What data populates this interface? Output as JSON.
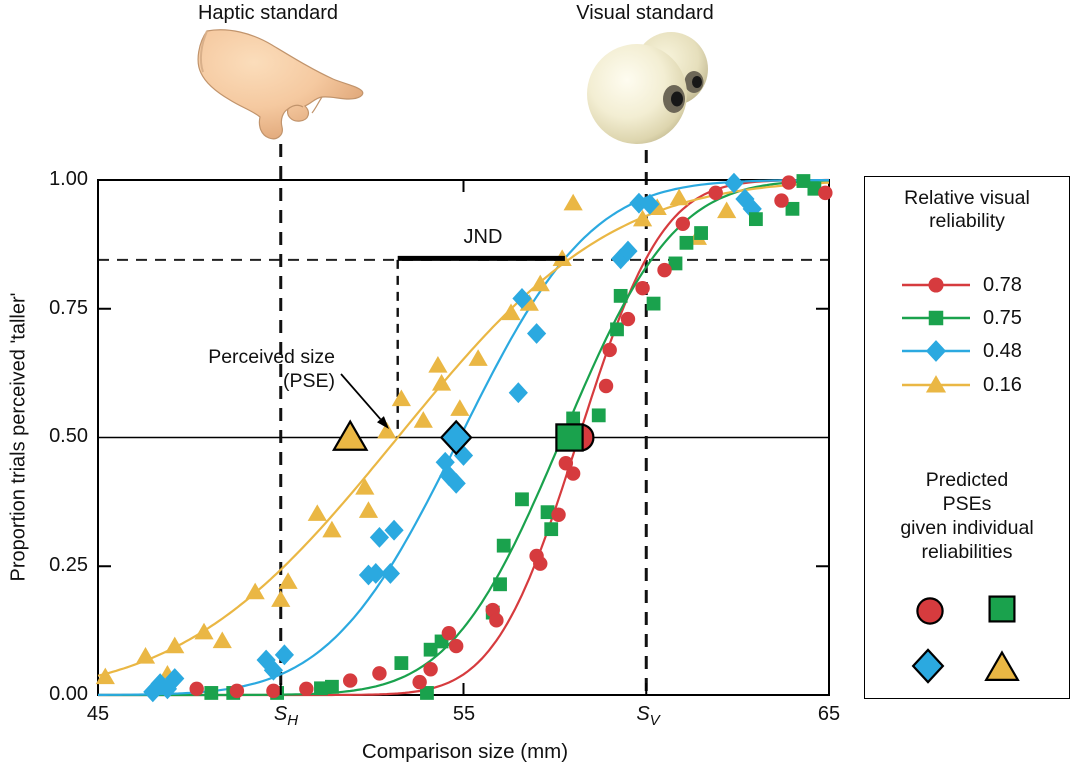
{
  "figure": {
    "haptic_label": "Haptic standard",
    "visual_label": "Visual standard",
    "haptic_icon": "pointing-hand",
    "visual_icon": "pair-of-eyeballs",
    "jnd_label": "JND",
    "pse_line1": "Perceived size",
    "pse_line2": "(PSE)"
  },
  "axes": {
    "x_title": "Comparison size (mm)",
    "y_title": "Proportion trials perceived 'taller'",
    "y_ticks": [
      "1.00",
      "0.75",
      "0.50",
      "0.25",
      "0.00"
    ],
    "x_ticks": [
      "45",
      "55",
      "65"
    ],
    "s_h": {
      "symbol": "S",
      "sub": "H"
    },
    "s_v": {
      "symbol": "S",
      "sub": "V"
    }
  },
  "legend": {
    "title_line1": "Relative visual",
    "title_line2": "reliability",
    "entries": [
      {
        "label": "0.78",
        "color": "#d63b3e",
        "marker": "circle"
      },
      {
        "label": "0.75",
        "color": "#1aa24d",
        "marker": "square"
      },
      {
        "label": "0.48",
        "color": "#2ba9e0",
        "marker": "diamond"
      },
      {
        "label": "0.16",
        "color": "#eab744",
        "marker": "triangle"
      }
    ],
    "pse_lines": [
      "Predicted",
      "PSEs",
      "given individual",
      "reliabilities"
    ]
  },
  "chart_data": {
    "type": "scatter",
    "subtype": "psychometric-functions (cumulative-Gaussian fits)",
    "xlabel": "Comparison size (mm)",
    "ylabel": "Proportion trials perceived 'taller'",
    "xlim": [
      45,
      65
    ],
    "ylim": [
      0,
      1
    ],
    "x_tick_values": [
      45,
      50,
      55,
      60,
      65
    ],
    "y_tick_values": [
      0,
      0.25,
      0.5,
      0.75,
      1.0
    ],
    "haptic_standard_mm": 50,
    "visual_standard_mm": 60,
    "jnd_level": 0.845,
    "grid": false,
    "legend_position": "right",
    "series": [
      {
        "name": "0.78",
        "relative_visual_reliability": 0.78,
        "color": "#d63b3e",
        "marker": "circle",
        "curve": {
          "pse": 58.15,
          "sigma": 1.8
        },
        "predicted_pse": 58.2,
        "points": [
          [
            47.7,
            0.012
          ],
          [
            48.8,
            0.008
          ],
          [
            49.8,
            0.008
          ],
          [
            50.7,
            0.012
          ],
          [
            51.9,
            0.028
          ],
          [
            52.7,
            0.042
          ],
          [
            53.8,
            0.025
          ],
          [
            54.1,
            0.05
          ],
          [
            54.6,
            0.12
          ],
          [
            54.8,
            0.095
          ],
          [
            55.8,
            0.165
          ],
          [
            55.9,
            0.145
          ],
          [
            57.0,
            0.27
          ],
          [
            57.1,
            0.255
          ],
          [
            57.6,
            0.35
          ],
          [
            57.8,
            0.45
          ],
          [
            58.0,
            0.43
          ],
          [
            58.9,
            0.6
          ],
          [
            59.0,
            0.67
          ],
          [
            59.5,
            0.73
          ],
          [
            59.9,
            0.79
          ],
          [
            60.5,
            0.825
          ],
          [
            61.0,
            0.915
          ],
          [
            61.9,
            0.975
          ],
          [
            63.7,
            0.96
          ],
          [
            63.9,
            0.995
          ],
          [
            64.9,
            0.975
          ]
        ]
      },
      {
        "name": "0.75",
        "relative_visual_reliability": 0.75,
        "color": "#1aa24d",
        "marker": "square",
        "curve": {
          "pse": 57.7,
          "sigma": 2.4
        },
        "predicted_pse": 57.9,
        "points": [
          [
            48.1,
            0.004
          ],
          [
            48.7,
            0.004
          ],
          [
            49.9,
            0.004
          ],
          [
            51.1,
            0.013
          ],
          [
            51.4,
            0.016
          ],
          [
            53.3,
            0.062
          ],
          [
            54.0,
            0.004
          ],
          [
            54.1,
            0.088
          ],
          [
            54.4,
            0.104
          ],
          [
            55.8,
            0.16
          ],
          [
            56.0,
            0.215
          ],
          [
            56.1,
            0.29
          ],
          [
            56.6,
            0.38
          ],
          [
            57.3,
            0.355
          ],
          [
            57.4,
            0.322
          ],
          [
            58.0,
            0.537
          ],
          [
            58.7,
            0.543
          ],
          [
            59.2,
            0.71
          ],
          [
            59.3,
            0.775
          ],
          [
            60.2,
            0.76
          ],
          [
            60.8,
            0.838
          ],
          [
            61.1,
            0.878
          ],
          [
            61.5,
            0.897
          ],
          [
            63.0,
            0.924
          ],
          [
            64.0,
            0.944
          ],
          [
            64.3,
            0.998
          ],
          [
            64.6,
            0.983
          ]
        ]
      },
      {
        "name": "0.48",
        "relative_visual_reliability": 0.48,
        "color": "#2ba9e0",
        "marker": "diamond",
        "curve": {
          "pse": 54.9,
          "sigma": 2.8
        },
        "predicted_pse": 54.8,
        "points": [
          [
            46.5,
            0.006
          ],
          [
            46.7,
            0.022
          ],
          [
            46.9,
            0.012
          ],
          [
            47.1,
            0.032
          ],
          [
            49.6,
            0.068
          ],
          [
            49.8,
            0.048
          ],
          [
            50.1,
            0.078
          ],
          [
            52.4,
            0.233
          ],
          [
            52.6,
            0.236
          ],
          [
            52.7,
            0.306
          ],
          [
            53.0,
            0.236
          ],
          [
            53.1,
            0.32
          ],
          [
            54.5,
            0.452
          ],
          [
            54.6,
            0.426
          ],
          [
            54.8,
            0.411
          ],
          [
            55.0,
            0.465
          ],
          [
            56.5,
            0.587
          ],
          [
            56.6,
            0.77
          ],
          [
            57.0,
            0.702
          ],
          [
            59.3,
            0.847
          ],
          [
            59.5,
            0.862
          ],
          [
            59.8,
            0.955
          ],
          [
            60.1,
            0.953
          ],
          [
            62.4,
            0.994
          ],
          [
            62.7,
            0.963
          ],
          [
            62.9,
            0.944
          ]
        ]
      },
      {
        "name": "0.16",
        "relative_visual_reliability": 0.16,
        "color": "#eab744",
        "marker": "triangle",
        "curve": {
          "pse": 53.2,
          "sigma": 4.6
        },
        "predicted_pse": 51.9,
        "points": [
          [
            45.2,
            0.035
          ],
          [
            46.3,
            0.075
          ],
          [
            46.9,
            0.04
          ],
          [
            47.1,
            0.095
          ],
          [
            47.9,
            0.122
          ],
          [
            48.4,
            0.105
          ],
          [
            49.3,
            0.2
          ],
          [
            50.0,
            0.185
          ],
          [
            50.2,
            0.22
          ],
          [
            51.0,
            0.352
          ],
          [
            51.4,
            0.32
          ],
          [
            52.3,
            0.403
          ],
          [
            52.4,
            0.358
          ],
          [
            52.9,
            0.512
          ],
          [
            53.3,
            0.575
          ],
          [
            53.9,
            0.533
          ],
          [
            54.3,
            0.64
          ],
          [
            54.4,
            0.605
          ],
          [
            54.9,
            0.556
          ],
          [
            55.4,
            0.653
          ],
          [
            56.3,
            0.742
          ],
          [
            56.8,
            0.76
          ],
          [
            57.1,
            0.798
          ],
          [
            57.7,
            0.847
          ],
          [
            58.0,
            0.955
          ],
          [
            59.9,
            0.924
          ],
          [
            60.3,
            0.946
          ],
          [
            60.9,
            0.965
          ],
          [
            61.4,
            0.888
          ],
          [
            62.2,
            0.94
          ]
        ]
      }
    ]
  }
}
